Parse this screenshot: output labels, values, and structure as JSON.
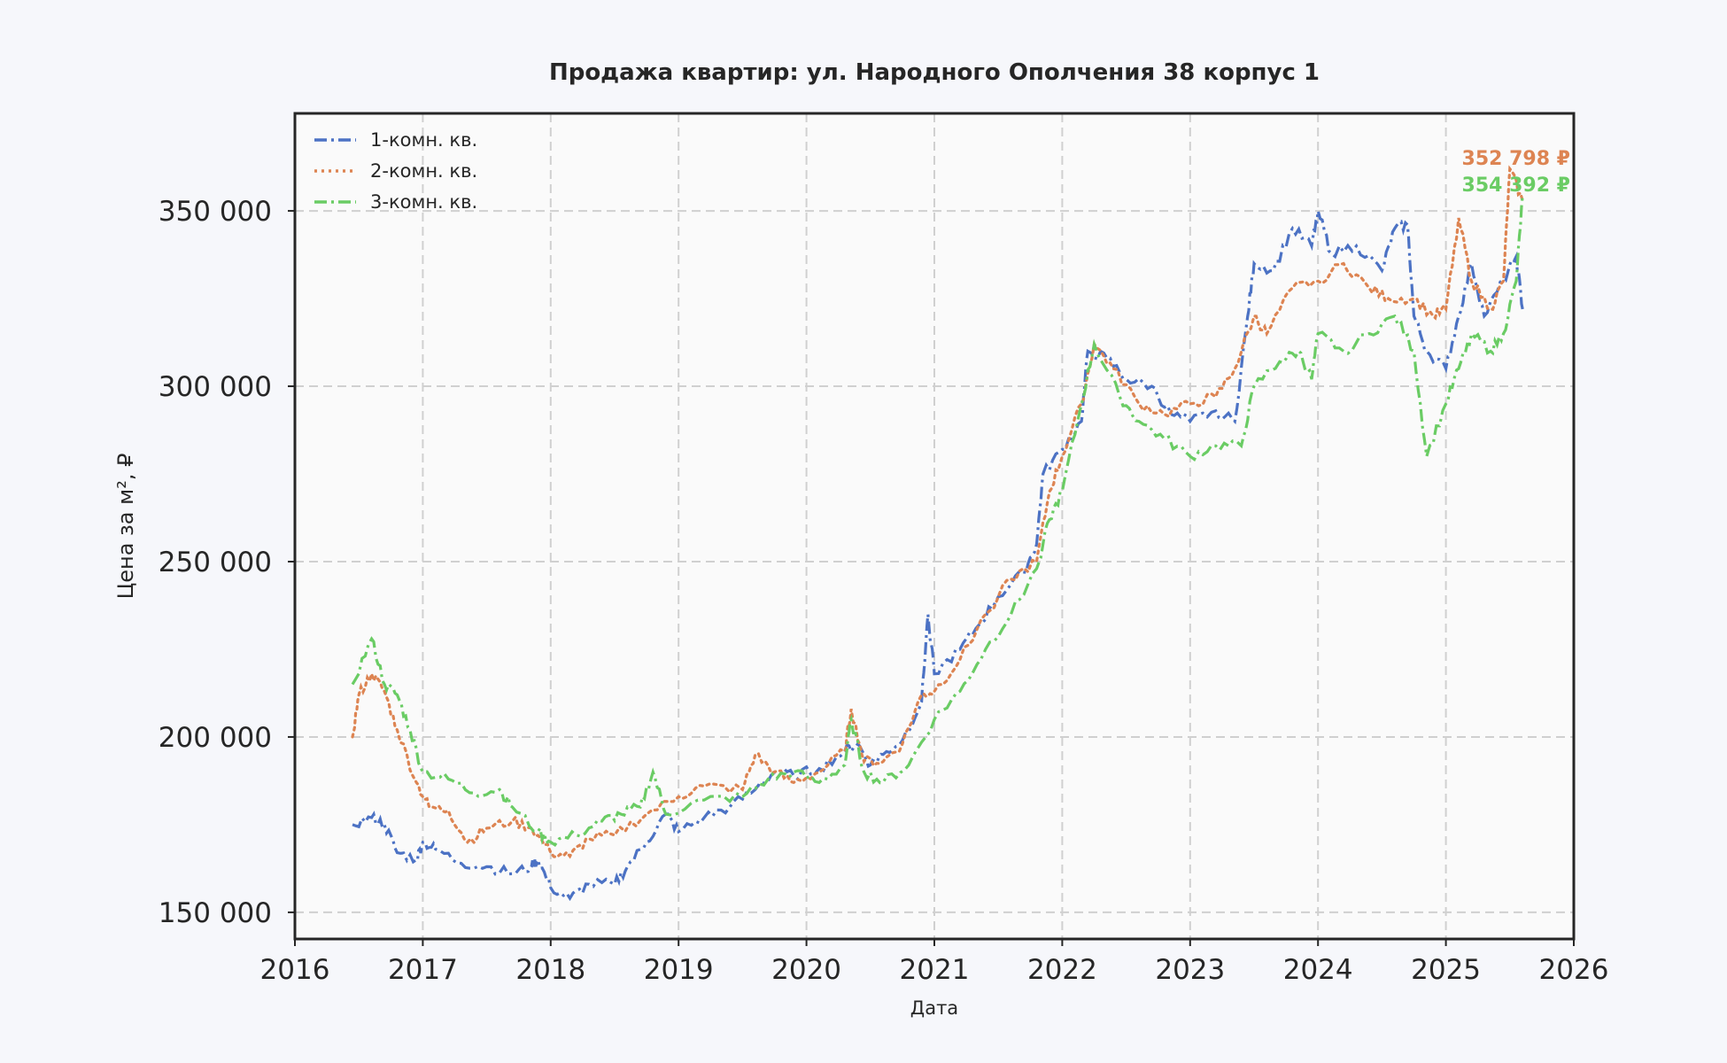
{
  "chart_data": {
    "type": "line",
    "title": "Продажа квартир: ул. Народного Ополчения 38 корпус 1",
    "xlabel": "Дата",
    "ylabel": "Цена за м², ₽",
    "xlim": [
      2016,
      2026
    ],
    "ylim": [
      142400,
      377800
    ],
    "x_ticks": [
      2016,
      2017,
      2018,
      2019,
      2020,
      2021,
      2022,
      2023,
      2024,
      2025,
      2026
    ],
    "x_tick_labels": [
      "2016",
      "2017",
      "2018",
      "2019",
      "2020",
      "2021",
      "2022",
      "2023",
      "2024",
      "2025",
      "2026"
    ],
    "y_ticks": [
      150000,
      200000,
      250000,
      300000,
      350000
    ],
    "y_tick_labels": [
      "150 000",
      "200 000",
      "250 000",
      "300 000",
      "350 000"
    ],
    "grid": true,
    "legend_position": "top-left",
    "series": [
      {
        "name": "1-комн. кв.",
        "color": "#4c72c4",
        "style": "dashdot",
        "x": [
          2016.45,
          2016.6,
          2016.7,
          2016.8,
          2016.95,
          2017.0,
          2017.1,
          2017.3,
          2017.5,
          2017.7,
          2017.85,
          2017.9,
          2018.0,
          2018.15,
          2018.3,
          2018.5,
          2018.6,
          2018.75,
          2018.9,
          2019.0,
          2019.2,
          2019.4,
          2019.6,
          2019.75,
          2019.9,
          2020.1,
          2020.3,
          2020.4,
          2020.5,
          2020.6,
          2020.75,
          2020.9,
          2020.95,
          2021.0,
          2021.2,
          2021.35,
          2021.5,
          2021.7,
          2021.8,
          2021.85,
          2022.0,
          2022.15,
          2022.2,
          2022.35,
          2022.5,
          2022.7,
          2022.85,
          2023.0,
          2023.2,
          2023.35,
          2023.45,
          2023.5,
          2023.65,
          2023.8,
          2023.95,
          2024.0,
          2024.1,
          2024.3,
          2024.5,
          2024.6,
          2024.7,
          2024.75,
          2024.85,
          2025.0,
          2025.1,
          2025.2,
          2025.3,
          2025.45,
          2025.55,
          2025.6
        ],
        "y": [
          175000,
          177000,
          175000,
          167000,
          165000,
          170000,
          168000,
          164000,
          163000,
          161000,
          163000,
          165000,
          157000,
          154000,
          158000,
          158000,
          163000,
          170000,
          178000,
          173000,
          177000,
          180000,
          185000,
          190000,
          189000,
          191000,
          196000,
          198000,
          192000,
          195000,
          199000,
          210000,
          235000,
          218000,
          225000,
          232000,
          240000,
          247000,
          255000,
          275000,
          282000,
          290000,
          310000,
          308000,
          302000,
          300000,
          292000,
          290000,
          293000,
          290000,
          320000,
          335000,
          333000,
          345000,
          340000,
          350000,
          338000,
          340000,
          333000,
          345000,
          346000,
          320000,
          310000,
          305000,
          320000,
          335000,
          320000,
          330000,
          337000,
          322000
        ]
      },
      {
        "name": "2-комн. кв.",
        "color": "#dd8452",
        "style": "dotted",
        "x": [
          2016.45,
          2016.5,
          2016.6,
          2016.7,
          2016.8,
          2016.95,
          2017.05,
          2017.2,
          2017.35,
          2017.5,
          2017.7,
          2017.85,
          2018.0,
          2018.15,
          2018.3,
          2018.5,
          2018.75,
          2019.0,
          2019.2,
          2019.5,
          2019.6,
          2019.75,
          2019.9,
          2020.1,
          2020.3,
          2020.35,
          2020.45,
          2020.6,
          2020.75,
          2020.9,
          2021.0,
          2021.2,
          2021.4,
          2021.6,
          2021.8,
          2021.9,
          2022.0,
          2022.15,
          2022.25,
          2022.4,
          2022.6,
          2022.8,
          2023.0,
          2023.2,
          2023.35,
          2023.5,
          2023.6,
          2023.8,
          2024.0,
          2024.2,
          2024.4,
          2024.55,
          2024.75,
          2024.9,
          2025.0,
          2025.1,
          2025.2,
          2025.35,
          2025.45,
          2025.5,
          2025.6
        ],
        "y": [
          200000,
          212000,
          218000,
          213000,
          202000,
          187000,
          180000,
          179000,
          170000,
          174000,
          176000,
          174000,
          167000,
          166000,
          171000,
          172000,
          178000,
          183000,
          186000,
          185000,
          195000,
          190000,
          187000,
          190000,
          196000,
          208000,
          193000,
          193000,
          198000,
          212000,
          213000,
          222000,
          235000,
          245000,
          250000,
          270000,
          280000,
          295000,
          312000,
          305000,
          295000,
          292000,
          295000,
          297000,
          305000,
          320000,
          315000,
          328000,
          330000,
          335000,
          328000,
          325000,
          325000,
          320000,
          322000,
          348000,
          330000,
          322000,
          330000,
          362000,
          352798
        ]
      },
      {
        "name": "3-комн. кв.",
        "color": "#6acc64",
        "style": "dashdot",
        "x": [
          2016.45,
          2016.6,
          2016.7,
          2016.8,
          2016.9,
          2017.0,
          2017.2,
          2017.4,
          2017.6,
          2017.7,
          2017.9,
          2018.0,
          2018.2,
          2018.4,
          2018.55,
          2018.7,
          2018.8,
          2018.9,
          2019.2,
          2019.5,
          2019.7,
          2019.9,
          2020.1,
          2020.3,
          2020.35,
          2020.45,
          2020.6,
          2020.8,
          2021.0,
          2021.2,
          2021.4,
          2021.6,
          2021.8,
          2021.9,
          2022.0,
          2022.15,
          2022.25,
          2022.45,
          2022.6,
          2022.8,
          2023.0,
          2023.2,
          2023.4,
          2023.5,
          2023.7,
          2023.85,
          2023.95,
          2024.0,
          2024.2,
          2024.4,
          2024.6,
          2024.75,
          2024.85,
          2025.0,
          2025.1,
          2025.2,
          2025.35,
          2025.45,
          2025.55,
          2025.6
        ],
        "y": [
          215000,
          228000,
          215000,
          212000,
          202000,
          190000,
          188000,
          184000,
          185000,
          180000,
          173000,
          170000,
          172000,
          176000,
          178000,
          180000,
          190000,
          178000,
          182000,
          183000,
          188000,
          190000,
          187000,
          192000,
          205000,
          190000,
          187000,
          192000,
          205000,
          213000,
          225000,
          235000,
          248000,
          262000,
          270000,
          295000,
          312000,
          297000,
          290000,
          285000,
          280000,
          283000,
          283000,
          300000,
          307000,
          310000,
          302000,
          315000,
          310000,
          315000,
          320000,
          310000,
          280000,
          295000,
          305000,
          315000,
          310000,
          315000,
          330000,
          354392
        ]
      }
    ],
    "annotations": [
      {
        "series": "2-комн. кв.",
        "text": "352 798 ₽",
        "color": "#dd8452"
      },
      {
        "series": "3-комн. кв.",
        "text": "354 392 ₽",
        "color": "#6acc64"
      }
    ]
  }
}
